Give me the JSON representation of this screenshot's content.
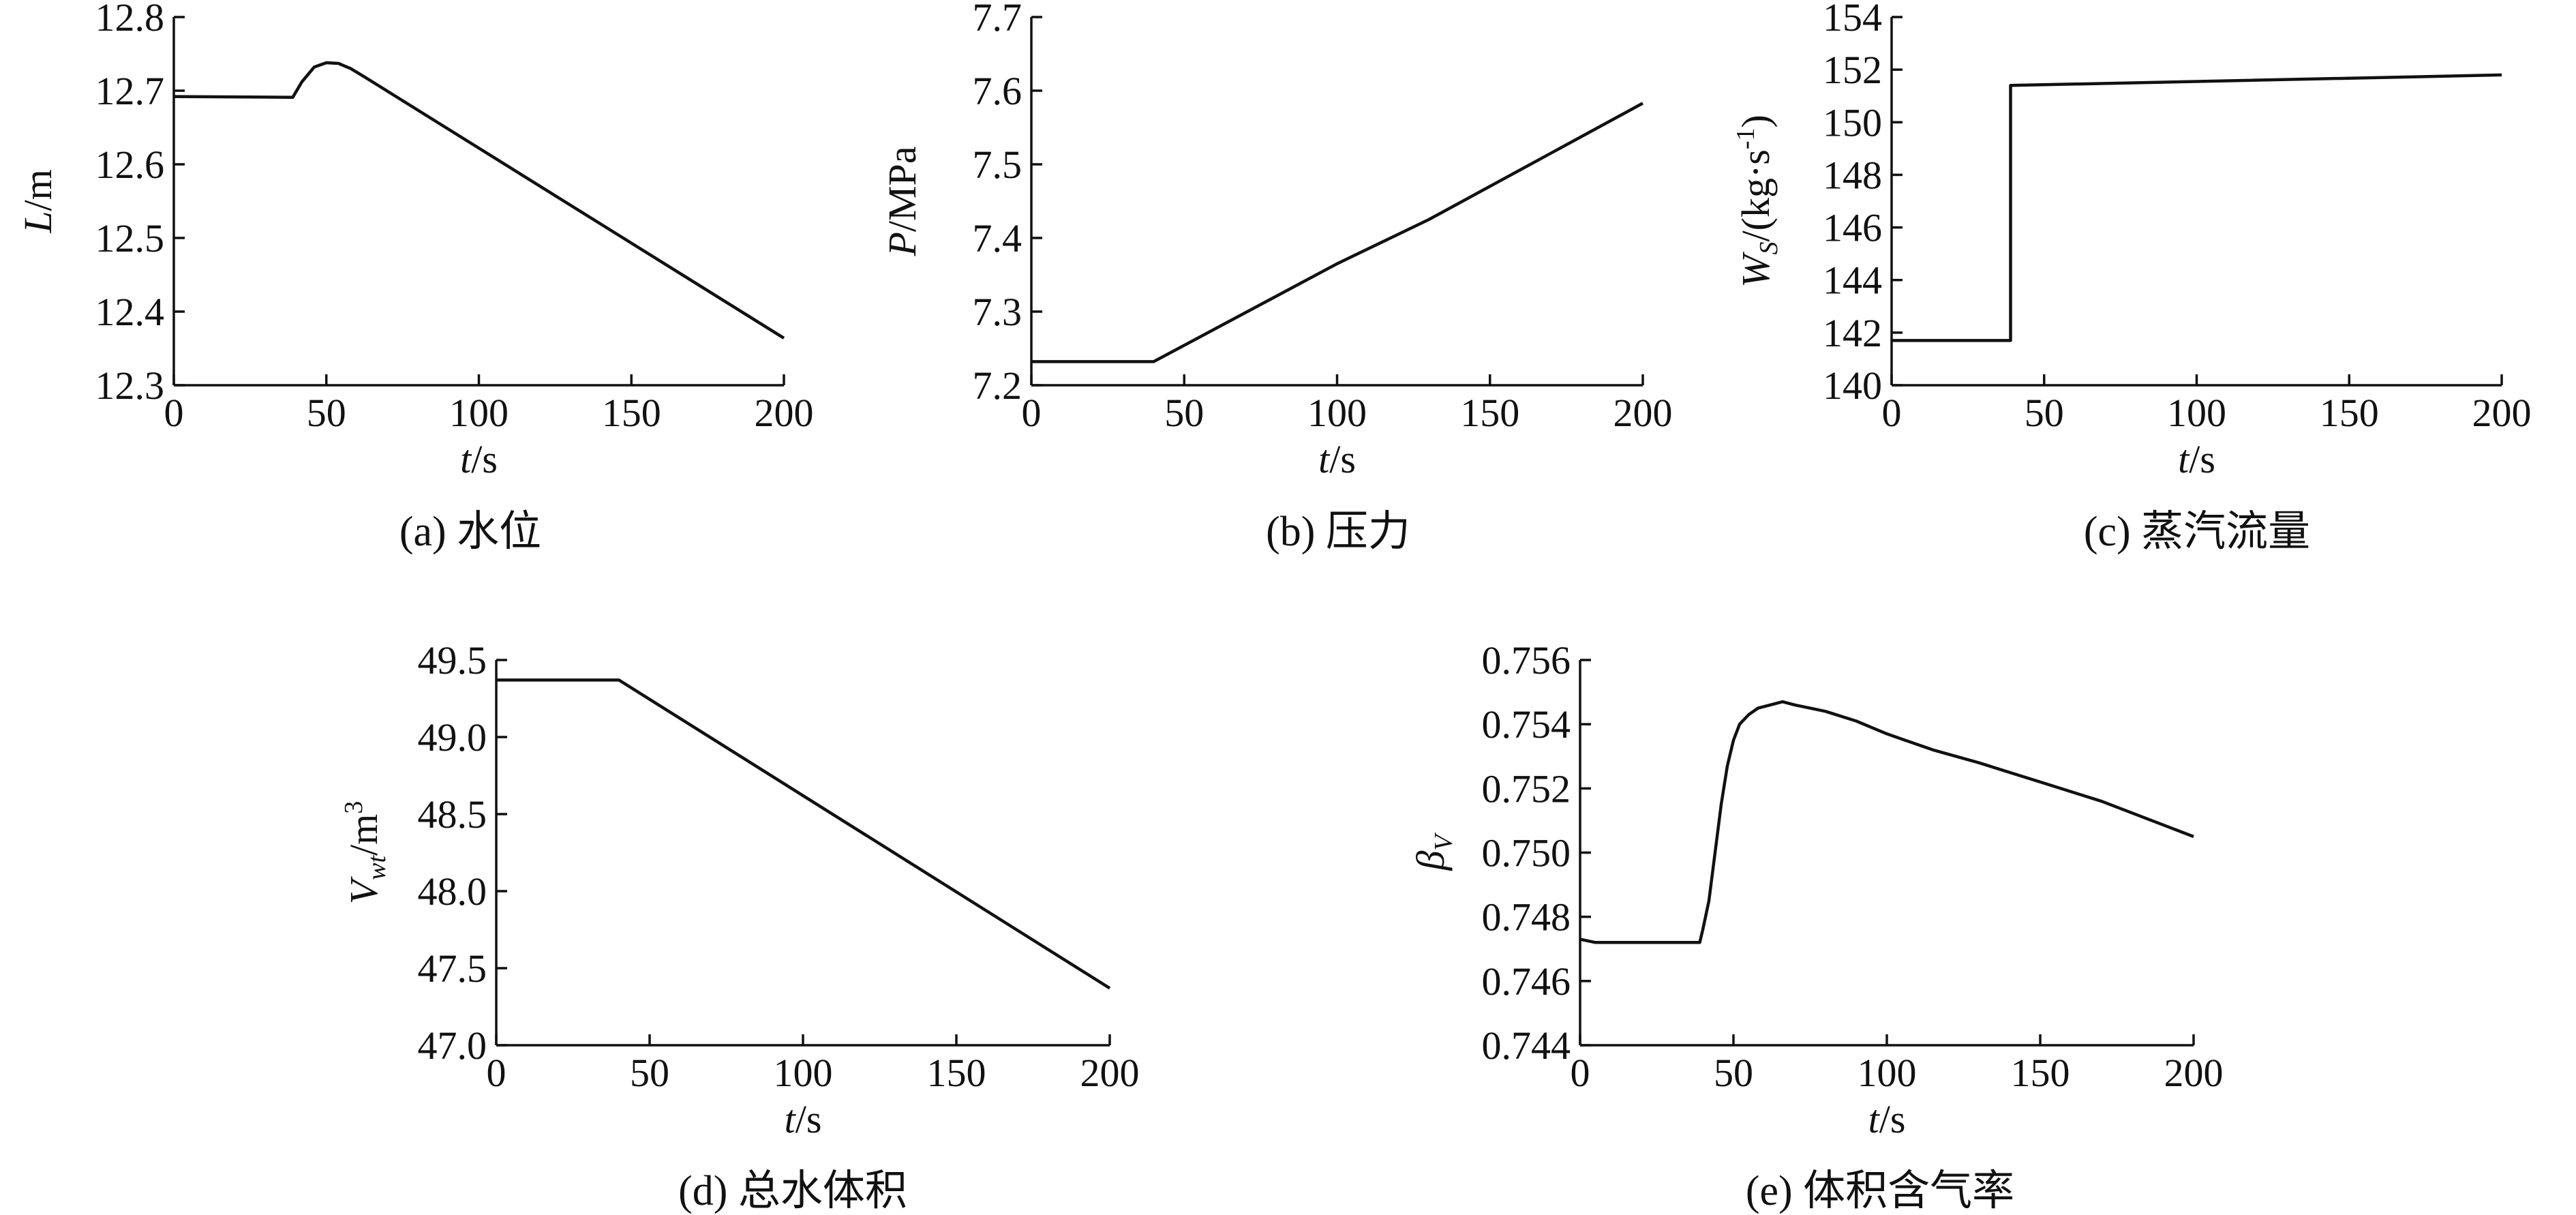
{
  "chart_data": [
    {
      "id": "a",
      "type": "line",
      "caption": "(a) 水位",
      "xlabel": {
        "main": "t",
        "unit": "/s"
      },
      "ylabel": {
        "main": "L",
        "unit": "/m"
      },
      "xlim": [
        0,
        200
      ],
      "ylim": [
        12.3,
        12.8
      ],
      "xticks": [
        "0",
        "50",
        "100",
        "150",
        "200"
      ],
      "yticks": [
        "12.3",
        "12.4",
        "12.5",
        "12.6",
        "12.7",
        "12.8"
      ],
      "grid": false,
      "x": [
        0,
        39,
        42,
        46,
        50,
        54,
        58,
        62,
        200
      ],
      "y": [
        12.692,
        12.691,
        12.712,
        12.732,
        12.738,
        12.737,
        12.73,
        12.72,
        12.364
      ]
    },
    {
      "id": "b",
      "type": "line",
      "caption": "(b) 压力",
      "xlabel": {
        "main": "t",
        "unit": "/s"
      },
      "ylabel": {
        "main": "P",
        "unit": "/MPa"
      },
      "xlim": [
        0,
        200
      ],
      "ylim": [
        7.2,
        7.7
      ],
      "xticks": [
        "0",
        "50",
        "100",
        "150",
        "200"
      ],
      "yticks": [
        "7.2",
        "7.3",
        "7.4",
        "7.5",
        "7.6",
        "7.7"
      ],
      "grid": false,
      "x": [
        0,
        40,
        100,
        130,
        200
      ],
      "y": [
        7.232,
        7.232,
        7.365,
        7.425,
        7.583
      ]
    },
    {
      "id": "c",
      "type": "line",
      "caption": "(c) 蒸汽流量",
      "xlabel": {
        "main": "t",
        "unit": "/s"
      },
      "ylabel": {
        "main": "W",
        "sub": "S",
        "unit": "/(kg·s",
        "sup": "-1",
        "close": ")"
      },
      "xlim": [
        0,
        200
      ],
      "ylim": [
        140,
        154
      ],
      "xticks": [
        "0",
        "50",
        "100",
        "150",
        "200"
      ],
      "yticks": [
        "140",
        "142",
        "144",
        "146",
        "148",
        "150",
        "152",
        "154"
      ],
      "grid": false,
      "x": [
        0,
        39,
        39,
        100,
        200
      ],
      "y": [
        141.7,
        141.7,
        151.4,
        151.55,
        151.8
      ]
    },
    {
      "id": "d",
      "type": "line",
      "caption": "(d) 总水体积",
      "xlabel": {
        "main": "t",
        "unit": "/s"
      },
      "ylabel": {
        "main": "V",
        "sub": "wt",
        "unit": "/m",
        "sup": "3"
      },
      "xlim": [
        0,
        200
      ],
      "ylim": [
        47.0,
        49.5
      ],
      "xticks": [
        "0",
        "50",
        "100",
        "150",
        "200"
      ],
      "yticks": [
        "47.0",
        "47.5",
        "48.0",
        "48.5",
        "49.0",
        "49.5"
      ],
      "grid": false,
      "x": [
        0,
        40,
        200
      ],
      "y": [
        49.37,
        49.37,
        47.37
      ]
    },
    {
      "id": "e",
      "type": "line",
      "caption": "(e) 体积含气率",
      "xlabel": {
        "main": "t",
        "unit": "/s"
      },
      "ylabel": {
        "main": "β",
        "sub": "V"
      },
      "xlim": [
        0,
        200
      ],
      "ylim": [
        0.744,
        0.756
      ],
      "xticks": [
        "0",
        "50",
        "100",
        "150",
        "200"
      ],
      "yticks": [
        "0.744",
        "0.746",
        "0.748",
        "0.750",
        "0.752",
        "0.754",
        "0.756"
      ],
      "grid": false,
      "x": [
        0,
        5,
        10,
        39,
        40,
        42,
        44,
        46,
        48,
        50,
        52,
        55,
        58,
        62,
        66,
        70,
        80,
        90,
        100,
        115,
        130,
        150,
        170,
        200
      ],
      "y": [
        0.7473,
        0.7472,
        0.7472,
        0.7472,
        0.7476,
        0.7485,
        0.75,
        0.7515,
        0.7527,
        0.7535,
        0.754,
        0.7543,
        0.7545,
        0.7546,
        0.7547,
        0.7546,
        0.7544,
        0.7541,
        0.7537,
        0.7532,
        0.7528,
        0.7522,
        0.7516,
        0.7505
      ]
    }
  ]
}
